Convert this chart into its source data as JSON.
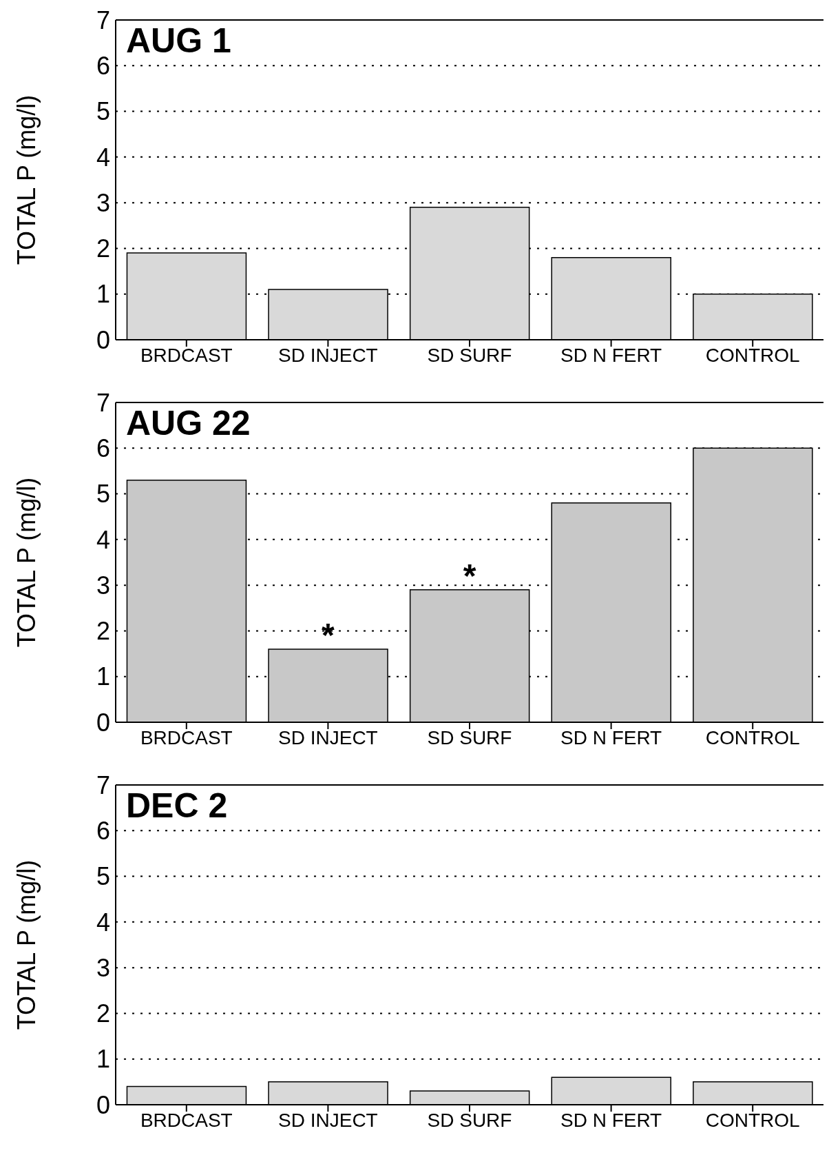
{
  "chart_data": [
    {
      "type": "bar",
      "title": "AUG 1",
      "ylabel": "TOTAL P (mg/l)",
      "categories": [
        "BRDCAST",
        "SD INJECT",
        "SD SURF",
        "SD N FERT",
        "CONTROL"
      ],
      "values": [
        1.9,
        1.1,
        2.9,
        1.8,
        1.0
      ],
      "color": "#d9d9d9",
      "ylim": [
        0,
        7
      ],
      "yticks": [
        0,
        1,
        2,
        3,
        4,
        5,
        6,
        7
      ],
      "grid": "y"
    },
    {
      "type": "bar",
      "title": "AUG 22",
      "ylabel": "TOTAL P (mg/l)",
      "categories": [
        "BRDCAST",
        "SD INJECT",
        "SD SURF",
        "SD N FERT",
        "CONTROL"
      ],
      "values": [
        5.3,
        1.6,
        2.9,
        4.8,
        6.0
      ],
      "color": "#c8c8c8",
      "ylim": [
        0,
        7
      ],
      "yticks": [
        0,
        1,
        2,
        3,
        4,
        5,
        6,
        7
      ],
      "grid": "y",
      "annotations": [
        {
          "text": "*",
          "x": "SD INJECT",
          "y": 1.6
        },
        {
          "text": "*",
          "x": "SD SURF",
          "y": 2.9
        }
      ]
    },
    {
      "type": "bar",
      "title": "DEC 2",
      "ylabel": "TOTAL P (mg/l)",
      "categories": [
        "BRDCAST",
        "SD INJECT",
        "SD SURF",
        "SD N FERT",
        "CONTROL"
      ],
      "values": [
        0.4,
        0.5,
        0.3,
        0.6,
        0.5
      ],
      "color": "#d9d9d9",
      "ylim": [
        0,
        7
      ],
      "yticks": [
        0,
        1,
        2,
        3,
        4,
        5,
        6,
        7
      ],
      "grid": "y"
    }
  ]
}
